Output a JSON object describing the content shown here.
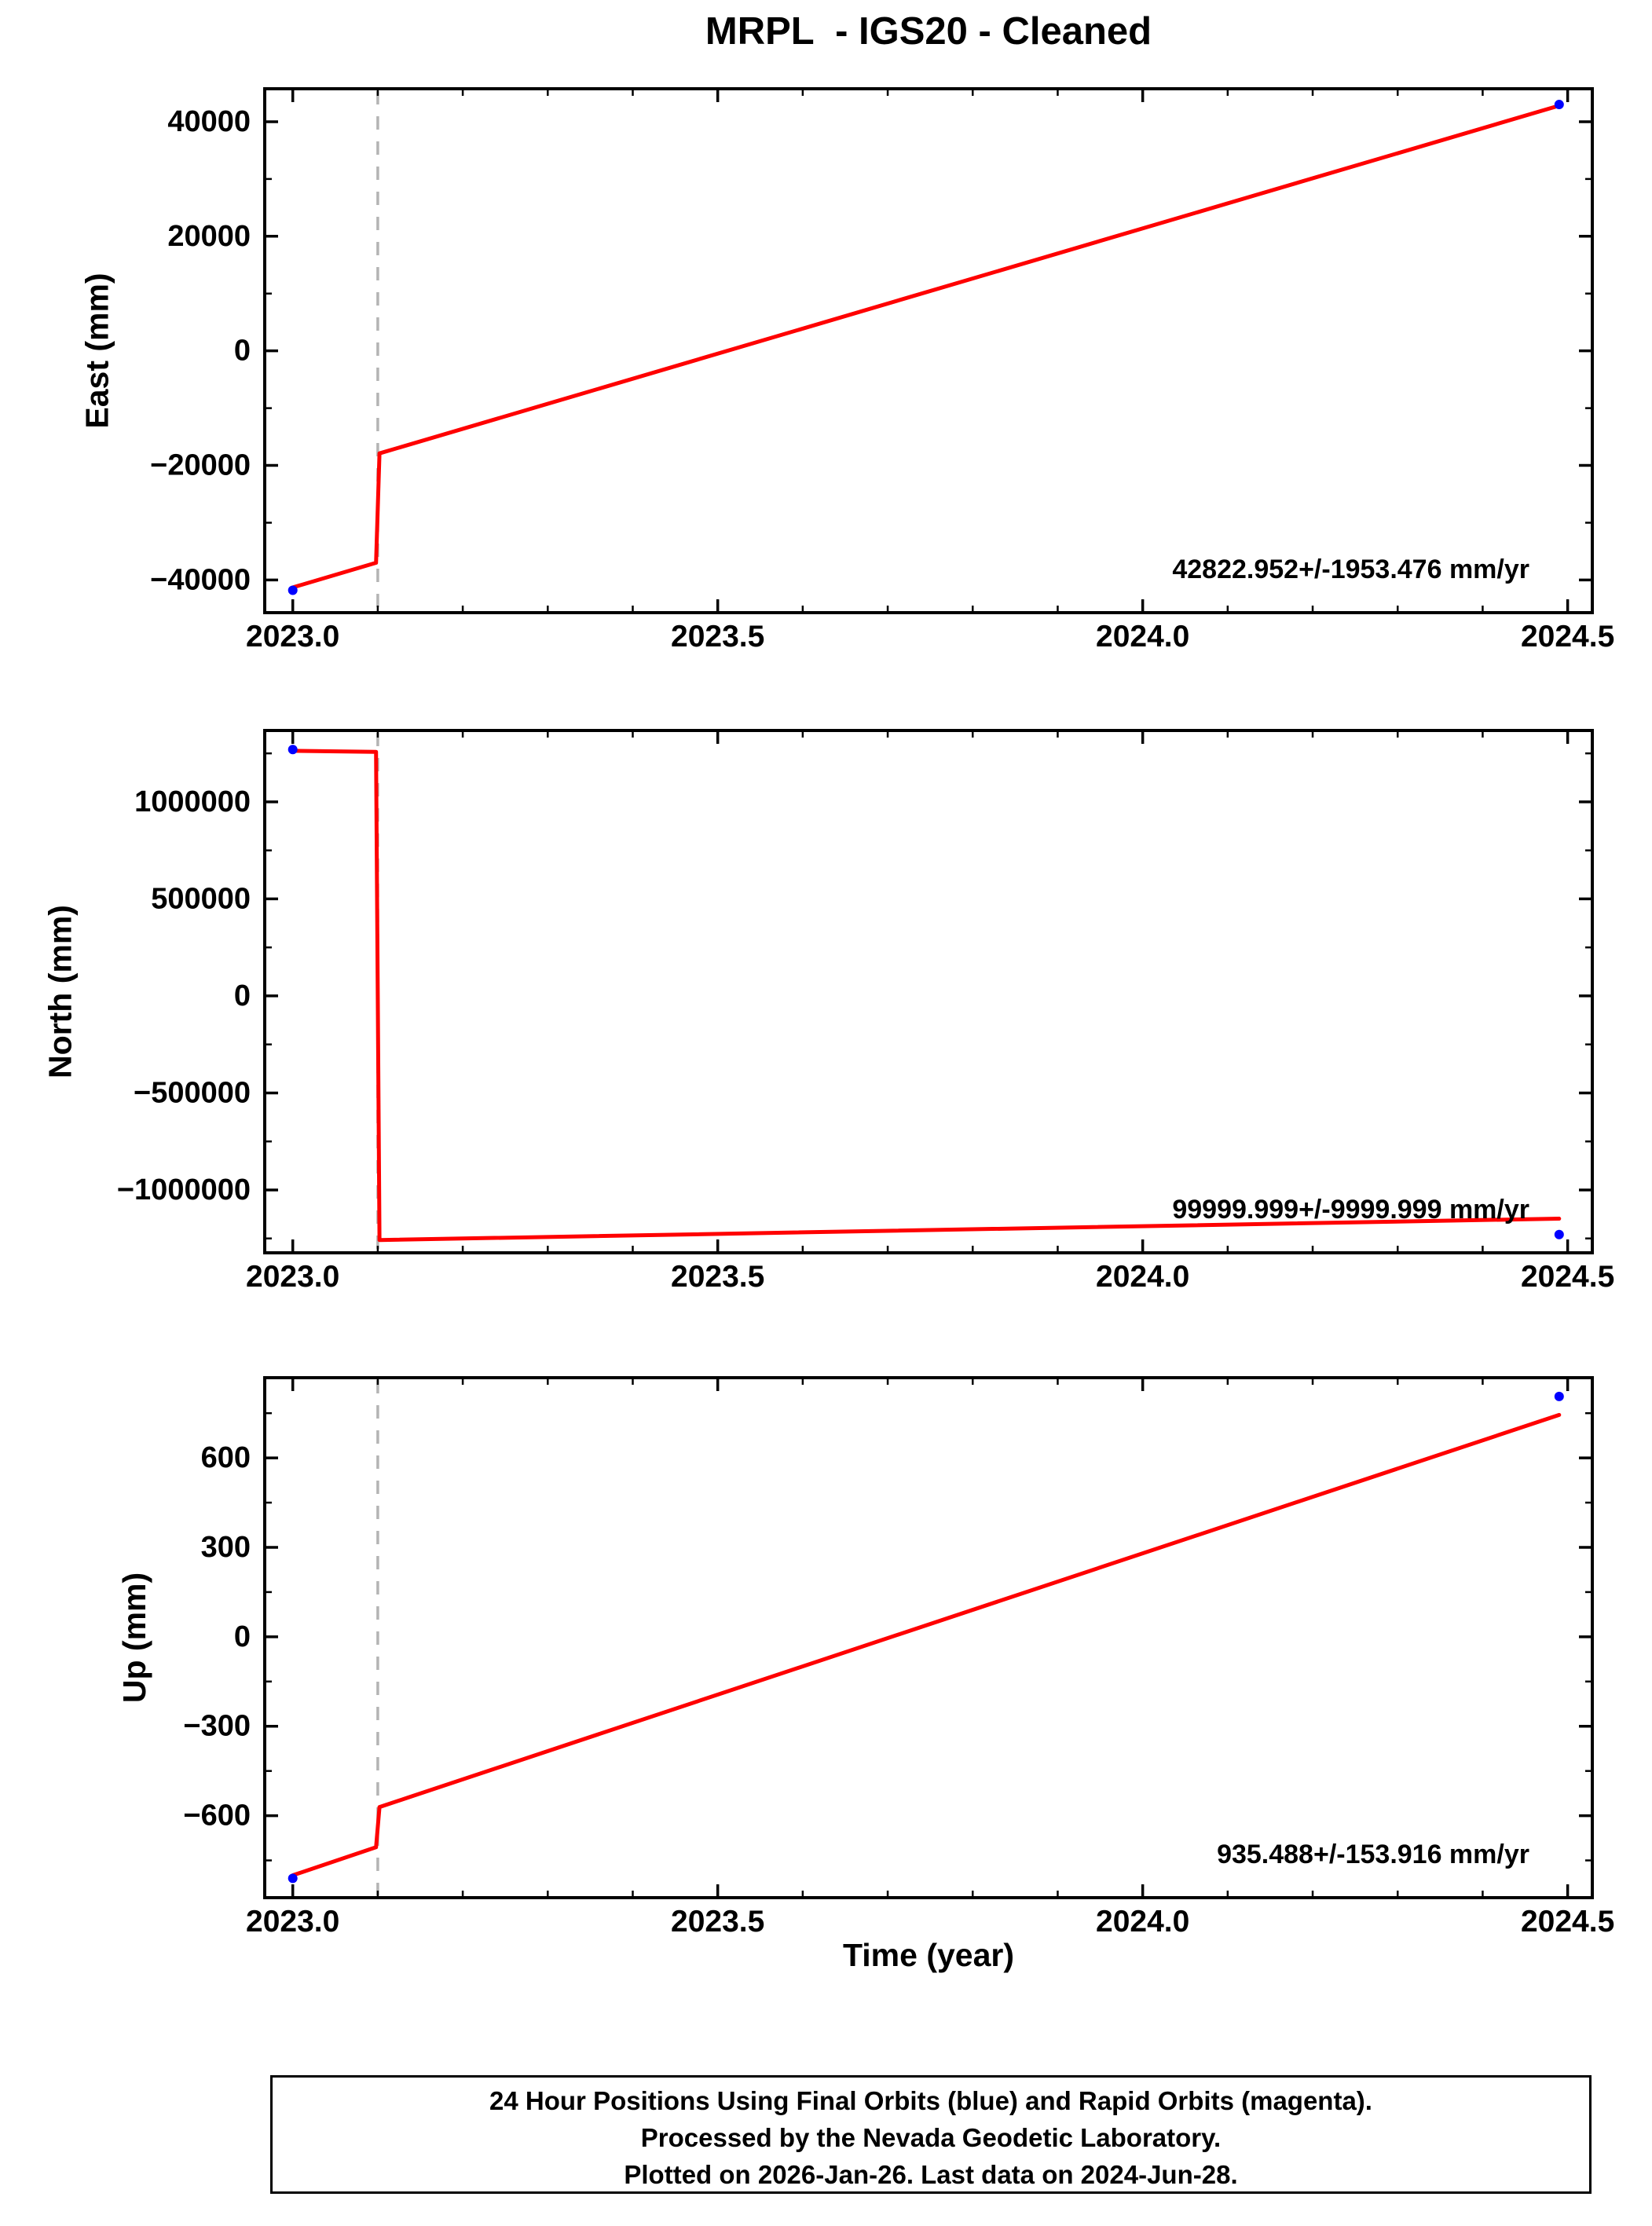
{
  "title": "MRPL  - IGS20 - Cleaned",
  "xlabel": "Time (year)",
  "footer": {
    "lines": [
      "24 Hour Positions Using Final Orbits (blue) and Rapid Orbits (magenta).",
      "Processed by the Nevada Geodetic Laboratory.",
      "Plotted on 2026-Jan-26. Last data on 2024-Jun-28."
    ]
  },
  "style": {
    "line_color": "#ff0000",
    "marker_color": "#0000ff",
    "offset_line_color": "#b4b4b4",
    "frame_color": "#000000"
  },
  "chart_data": [
    {
      "type": "line",
      "panel": "east",
      "ylabel": "East (mm)",
      "xlim": [
        2022.967,
        2024.529
      ],
      "ylim": [
        -45700,
        45750
      ],
      "grid": false,
      "xticks": {
        "major": [
          2023.0,
          2023.5,
          2024.0,
          2024.5
        ],
        "labels": [
          "2023.0",
          "2023.5",
          "2024.0",
          "2024.5"
        ],
        "minor_step": 0.1
      },
      "yticks": {
        "major": [
          -40000,
          -20000,
          0,
          20000,
          40000
        ],
        "labels": [
          "−40000",
          "−20000",
          "0",
          "20000",
          "40000"
        ],
        "minor_step": 10000
      },
      "offset_line_x": 2023.1,
      "series": [
        {
          "name": "trend-line",
          "color": "#ff0000",
          "points": [
            [
              2023.0,
              -41300
            ],
            [
              2023.098,
              -37000
            ],
            [
              2023.102,
              -17900
            ],
            [
              2024.49,
              42800
            ]
          ]
        }
      ],
      "markers": [
        {
          "x": 2023.0,
          "y": -41800
        },
        {
          "x": 2024.49,
          "y": 43000
        }
      ],
      "rate_label": "42822.952+/-1953.476 mm/yr"
    },
    {
      "type": "line",
      "panel": "north",
      "ylabel": "North (mm)",
      "xlim": [
        2022.967,
        2024.529
      ],
      "ylim": [
        -1324000,
        1368000
      ],
      "grid": false,
      "xticks": {
        "major": [
          2023.0,
          2023.5,
          2024.0,
          2024.5
        ],
        "labels": [
          "2023.0",
          "2023.5",
          "2024.0",
          "2024.5"
        ],
        "minor_step": 0.1
      },
      "yticks": {
        "major": [
          -1000000,
          -500000,
          0,
          500000,
          1000000
        ],
        "labels": [
          "−1000000",
          "−500000",
          "0",
          "500000",
          "1000000"
        ],
        "minor_step": 250000
      },
      "offset_line_x": 2023.1,
      "series": [
        {
          "name": "trend-line",
          "color": "#ff0000",
          "points": [
            [
              2023.0,
              1263000
            ],
            [
              2023.098,
              1258000
            ],
            [
              2023.102,
              -1258000
            ],
            [
              2024.49,
              -1148000
            ]
          ]
        }
      ],
      "markers": [
        {
          "x": 2023.0,
          "y": 1270000
        },
        {
          "x": 2024.49,
          "y": -1230000
        }
      ],
      "rate_label": "99999.999+/-9999.999 mm/yr"
    },
    {
      "type": "line",
      "panel": "up",
      "ylabel": "Up (mm)",
      "xlim": [
        2022.967,
        2024.529
      ],
      "ylim": [
        -875,
        869
      ],
      "grid": false,
      "xticks": {
        "major": [
          2023.0,
          2023.5,
          2024.0,
          2024.5
        ],
        "labels": [
          "2023.0",
          "2023.5",
          "2024.0",
          "2024.5"
        ],
        "minor_step": 0.1
      },
      "yticks": {
        "major": [
          -600,
          -300,
          0,
          300,
          600
        ],
        "labels": [
          "−600",
          "−300",
          "0",
          "300",
          "600"
        ],
        "minor_step": 150
      },
      "offset_line_x": 2023.1,
      "series": [
        {
          "name": "trend-line",
          "color": "#ff0000",
          "points": [
            [
              2023.0,
              -800
            ],
            [
              2023.098,
              -706
            ],
            [
              2023.102,
              -571
            ],
            [
              2024.49,
              744
            ]
          ]
        }
      ],
      "markers": [
        {
          "x": 2023.0,
          "y": -810
        },
        {
          "x": 2024.49,
          "y": 806
        }
      ],
      "rate_label": "935.488+/-153.916 mm/yr"
    }
  ]
}
